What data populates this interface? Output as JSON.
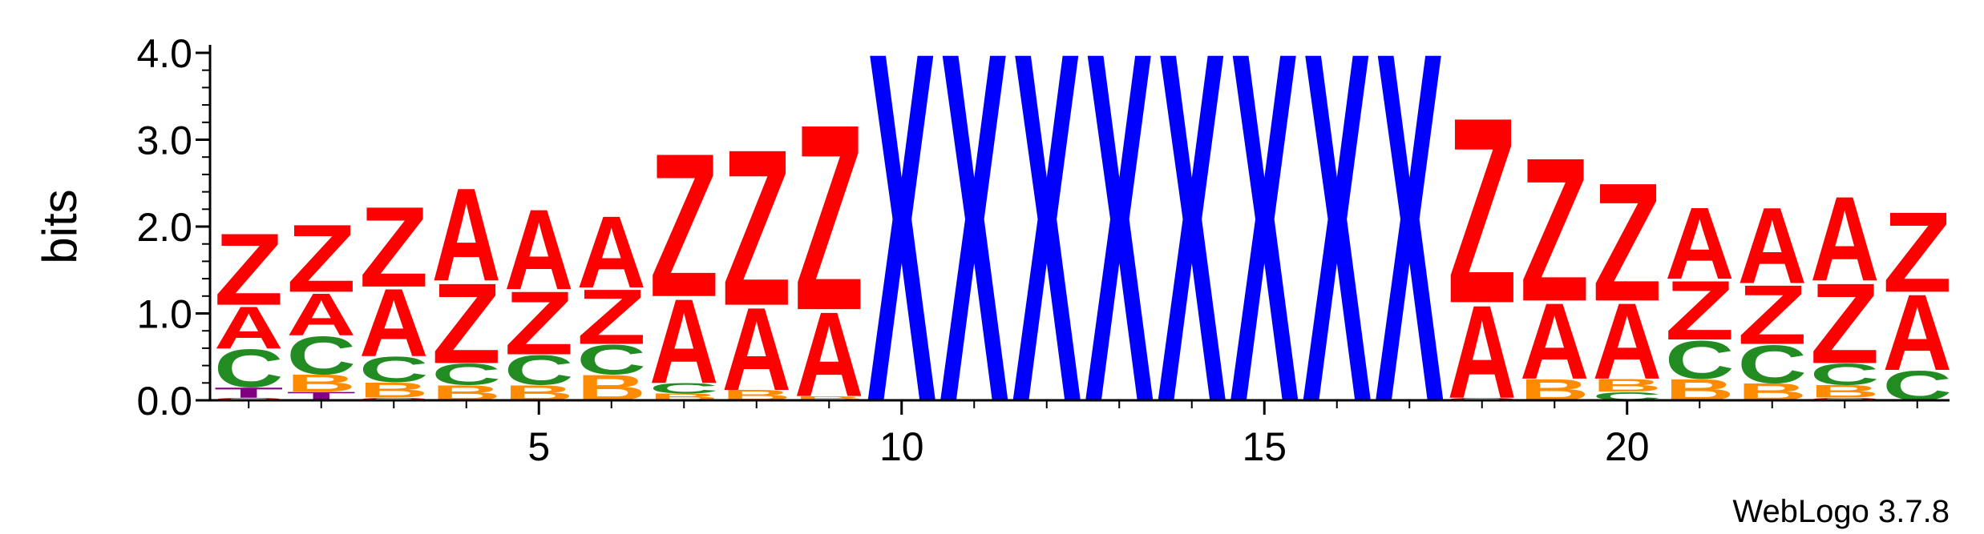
{
  "chart_data": {
    "type": "sequence-logo",
    "ylabel": "bits",
    "xlabel": "",
    "ylim": [
      0,
      4.0
    ],
    "y_ticks": [
      "0.0",
      "1.0",
      "2.0",
      "3.0",
      "4.0"
    ],
    "x_ticks": [
      "5",
      "10",
      "15",
      "20"
    ],
    "x_tick_positions": [
      5,
      10,
      15,
      20
    ],
    "positions": 24,
    "footer": "WebLogo 3.7.8",
    "colors": {
      "Z": "#ff0000",
      "A": "#ff0000",
      "X": "#0000ff",
      "C": "#228b22",
      "B": "#ff8c00",
      "T": "#800080",
      "O": "#ff0000"
    },
    "columns": [
      {
        "pos": 1,
        "letters": [
          {
            "letter": "O",
            "value": 0.03
          },
          {
            "letter": "T",
            "value": 0.12
          },
          {
            "letter": "C",
            "value": 0.45
          },
          {
            "letter": "A",
            "value": 0.5
          },
          {
            "letter": "Z",
            "value": 0.85
          }
        ]
      },
      {
        "pos": 2,
        "letters": [
          {
            "letter": "T",
            "value": 0.1
          },
          {
            "letter": "B",
            "value": 0.2
          },
          {
            "letter": "C",
            "value": 0.45
          },
          {
            "letter": "A",
            "value": 0.5
          },
          {
            "letter": "Z",
            "value": 0.8
          }
        ]
      },
      {
        "pos": 3,
        "letters": [
          {
            "letter": "O",
            "value": 0.03
          },
          {
            "letter": "B",
            "value": 0.18
          },
          {
            "letter": "C",
            "value": 0.3
          },
          {
            "letter": "A",
            "value": 0.8
          },
          {
            "letter": "Z",
            "value": 0.95
          }
        ]
      },
      {
        "pos": 4,
        "letters": [
          {
            "letter": "B",
            "value": 0.18
          },
          {
            "letter": "C",
            "value": 0.25
          },
          {
            "letter": "Z",
            "value": 0.95
          },
          {
            "letter": "A",
            "value": 1.1
          }
        ]
      },
      {
        "pos": 5,
        "letters": [
          {
            "letter": "B",
            "value": 0.18
          },
          {
            "letter": "C",
            "value": 0.35
          },
          {
            "letter": "Z",
            "value": 0.75
          },
          {
            "letter": "A",
            "value": 0.95
          }
        ]
      },
      {
        "pos": 6,
        "letters": [
          {
            "letter": "B",
            "value": 0.3
          },
          {
            "letter": "C",
            "value": 0.35
          },
          {
            "letter": "Z",
            "value": 0.65
          },
          {
            "letter": "A",
            "value": 0.85
          }
        ]
      },
      {
        "pos": 7,
        "letters": [
          {
            "letter": "B",
            "value": 0.08
          },
          {
            "letter": "C",
            "value": 0.12
          },
          {
            "letter": "A",
            "value": 1.0
          },
          {
            "letter": "Z",
            "value": 1.7
          }
        ]
      },
      {
        "pos": 8,
        "letters": [
          {
            "letter": "B",
            "value": 0.12
          },
          {
            "letter": "A",
            "value": 0.98
          },
          {
            "letter": "Z",
            "value": 1.85
          }
        ]
      },
      {
        "pos": 9,
        "letters": [
          {
            "letter": "B",
            "value": 0.05
          },
          {
            "letter": "A",
            "value": 1.0
          },
          {
            "letter": "Z",
            "value": 2.2
          }
        ]
      },
      {
        "pos": 10,
        "letters": [
          {
            "letter": "X",
            "value": 4.15
          }
        ]
      },
      {
        "pos": 11,
        "letters": [
          {
            "letter": "X",
            "value": 4.15
          }
        ]
      },
      {
        "pos": 12,
        "letters": [
          {
            "letter": "X",
            "value": 4.15
          }
        ]
      },
      {
        "pos": 13,
        "letters": [
          {
            "letter": "X",
            "value": 4.15
          }
        ]
      },
      {
        "pos": 14,
        "letters": [
          {
            "letter": "X",
            "value": 4.15
          }
        ]
      },
      {
        "pos": 15,
        "letters": [
          {
            "letter": "X",
            "value": 4.15
          }
        ]
      },
      {
        "pos": 16,
        "letters": [
          {
            "letter": "X",
            "value": 4.15
          }
        ]
      },
      {
        "pos": 17,
        "letters": [
          {
            "letter": "X",
            "value": 4.15
          }
        ]
      },
      {
        "pos": 18,
        "letters": [
          {
            "letter": "O",
            "value": 0.03
          },
          {
            "letter": "A",
            "value": 1.1
          },
          {
            "letter": "Z",
            "value": 2.2
          }
        ]
      },
      {
        "pos": 19,
        "letters": [
          {
            "letter": "B",
            "value": 0.25
          },
          {
            "letter": "A",
            "value": 0.9
          },
          {
            "letter": "Z",
            "value": 1.7
          }
        ]
      },
      {
        "pos": 20,
        "letters": [
          {
            "letter": "C",
            "value": 0.1
          },
          {
            "letter": "B",
            "value": 0.15
          },
          {
            "letter": "A",
            "value": 0.9
          },
          {
            "letter": "Z",
            "value": 1.4
          }
        ]
      },
      {
        "pos": 21,
        "letters": [
          {
            "letter": "B",
            "value": 0.25
          },
          {
            "letter": "C",
            "value": 0.45
          },
          {
            "letter": "Z",
            "value": 0.7
          },
          {
            "letter": "A",
            "value": 0.85
          }
        ]
      },
      {
        "pos": 22,
        "letters": [
          {
            "letter": "B",
            "value": 0.2
          },
          {
            "letter": "C",
            "value": 0.45
          },
          {
            "letter": "Z",
            "value": 0.7
          },
          {
            "letter": "A",
            "value": 0.9
          }
        ]
      },
      {
        "pos": 23,
        "letters": [
          {
            "letter": "O",
            "value": 0.03
          },
          {
            "letter": "B",
            "value": 0.15
          },
          {
            "letter": "C",
            "value": 0.25
          },
          {
            "letter": "Z",
            "value": 0.95
          },
          {
            "letter": "A",
            "value": 1.0
          }
        ]
      },
      {
        "pos": 24,
        "letters": [
          {
            "letter": "C",
            "value": 0.35
          },
          {
            "letter": "A",
            "value": 0.9
          },
          {
            "letter": "Z",
            "value": 0.95
          }
        ]
      }
    ]
  }
}
